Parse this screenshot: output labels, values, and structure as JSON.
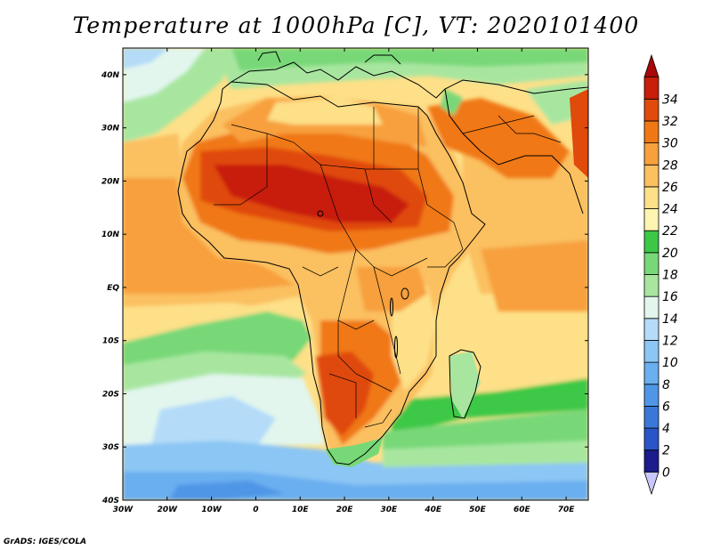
{
  "title": "Temperature at 1000hPa [C], VT: 2020101400",
  "credit": "GrADS: IGES/COLA",
  "map": {
    "lon_range": [
      -30,
      75
    ],
    "lat_range": [
      -40,
      45
    ],
    "lon_ticks": [
      {
        "value": -30,
        "label": "30W"
      },
      {
        "value": -20,
        "label": "20W"
      },
      {
        "value": -10,
        "label": "10W"
      },
      {
        "value": 0,
        "label": "0"
      },
      {
        "value": 10,
        "label": "10E"
      },
      {
        "value": 20,
        "label": "20E"
      },
      {
        "value": 30,
        "label": "30E"
      },
      {
        "value": 40,
        "label": "40E"
      },
      {
        "value": 50,
        "label": "50E"
      },
      {
        "value": 60,
        "label": "60E"
      },
      {
        "value": 70,
        "label": "70E"
      }
    ],
    "lat_ticks": [
      {
        "value": 40,
        "label": "40N"
      },
      {
        "value": 30,
        "label": "30N"
      },
      {
        "value": 20,
        "label": "20N"
      },
      {
        "value": 10,
        "label": "10N"
      },
      {
        "value": 0,
        "label": "EQ"
      },
      {
        "value": -10,
        "label": "10S"
      },
      {
        "value": -20,
        "label": "20S"
      },
      {
        "value": -30,
        "label": "30S"
      },
      {
        "value": -40,
        "label": "40S"
      }
    ]
  },
  "colorbar": {
    "levels": [
      0,
      2,
      4,
      6,
      8,
      10,
      12,
      14,
      16,
      18,
      20,
      22,
      24,
      26,
      28,
      30,
      32,
      34
    ],
    "labels": [
      "0",
      "2",
      "4",
      "6",
      "8",
      "10",
      "12",
      "14",
      "16",
      "18",
      "20",
      "22",
      "24",
      "26",
      "28",
      "30",
      "32",
      "34"
    ],
    "colors": [
      "#c8c8ff",
      "#1c1c8c",
      "#2a55c8",
      "#3a78d8",
      "#4f96e6",
      "#6aaff0",
      "#8cc6f4",
      "#b4dcf8",
      "#e2f6ee",
      "#a8e6a0",
      "#78d878",
      "#3cc846",
      "#fff4b0",
      "#fde088",
      "#fbc060",
      "#f7a03c",
      "#f07814",
      "#e04a0a",
      "#c81e0a",
      "#a80808"
    ]
  },
  "regions": [
    {
      "name": "ocean-south-cold",
      "level": 12,
      "color": "#8cc6f4"
    },
    {
      "name": "ocean-south-cool",
      "level": 16,
      "color": "#e2f6ee"
    },
    {
      "name": "ocean-south-green",
      "level": 20,
      "color": "#78d878"
    },
    {
      "name": "ocean-tropical",
      "level": 26,
      "color": "#fde088"
    },
    {
      "name": "sahara-hot",
      "level": 32,
      "color": "#e04a0a"
    },
    {
      "name": "sahel-hot",
      "level": 34,
      "color": "#c81e0a"
    }
  ]
}
